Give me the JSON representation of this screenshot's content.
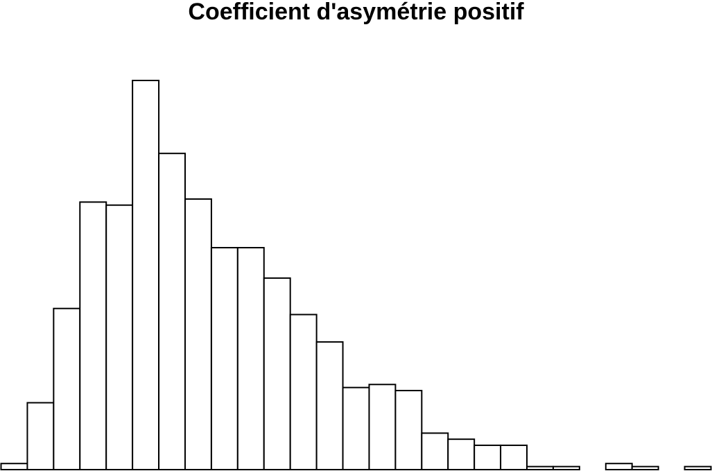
{
  "chart_data": {
    "type": "bar",
    "title": "Coefficient d'asymétrie positif",
    "xlabel": "",
    "ylabel": "",
    "bins": 27,
    "values": [
      2,
      22,
      53,
      88,
      87,
      128,
      104,
      89,
      73,
      73,
      63,
      51,
      42,
      27,
      28,
      26,
      12,
      10,
      8,
      8,
      1,
      1,
      0,
      2,
      1,
      0,
      1
    ],
    "ylim": [
      0,
      128
    ],
    "grid": false,
    "legend": "none",
    "bar_fill": "#ffffff",
    "bar_stroke": "#000000"
  }
}
